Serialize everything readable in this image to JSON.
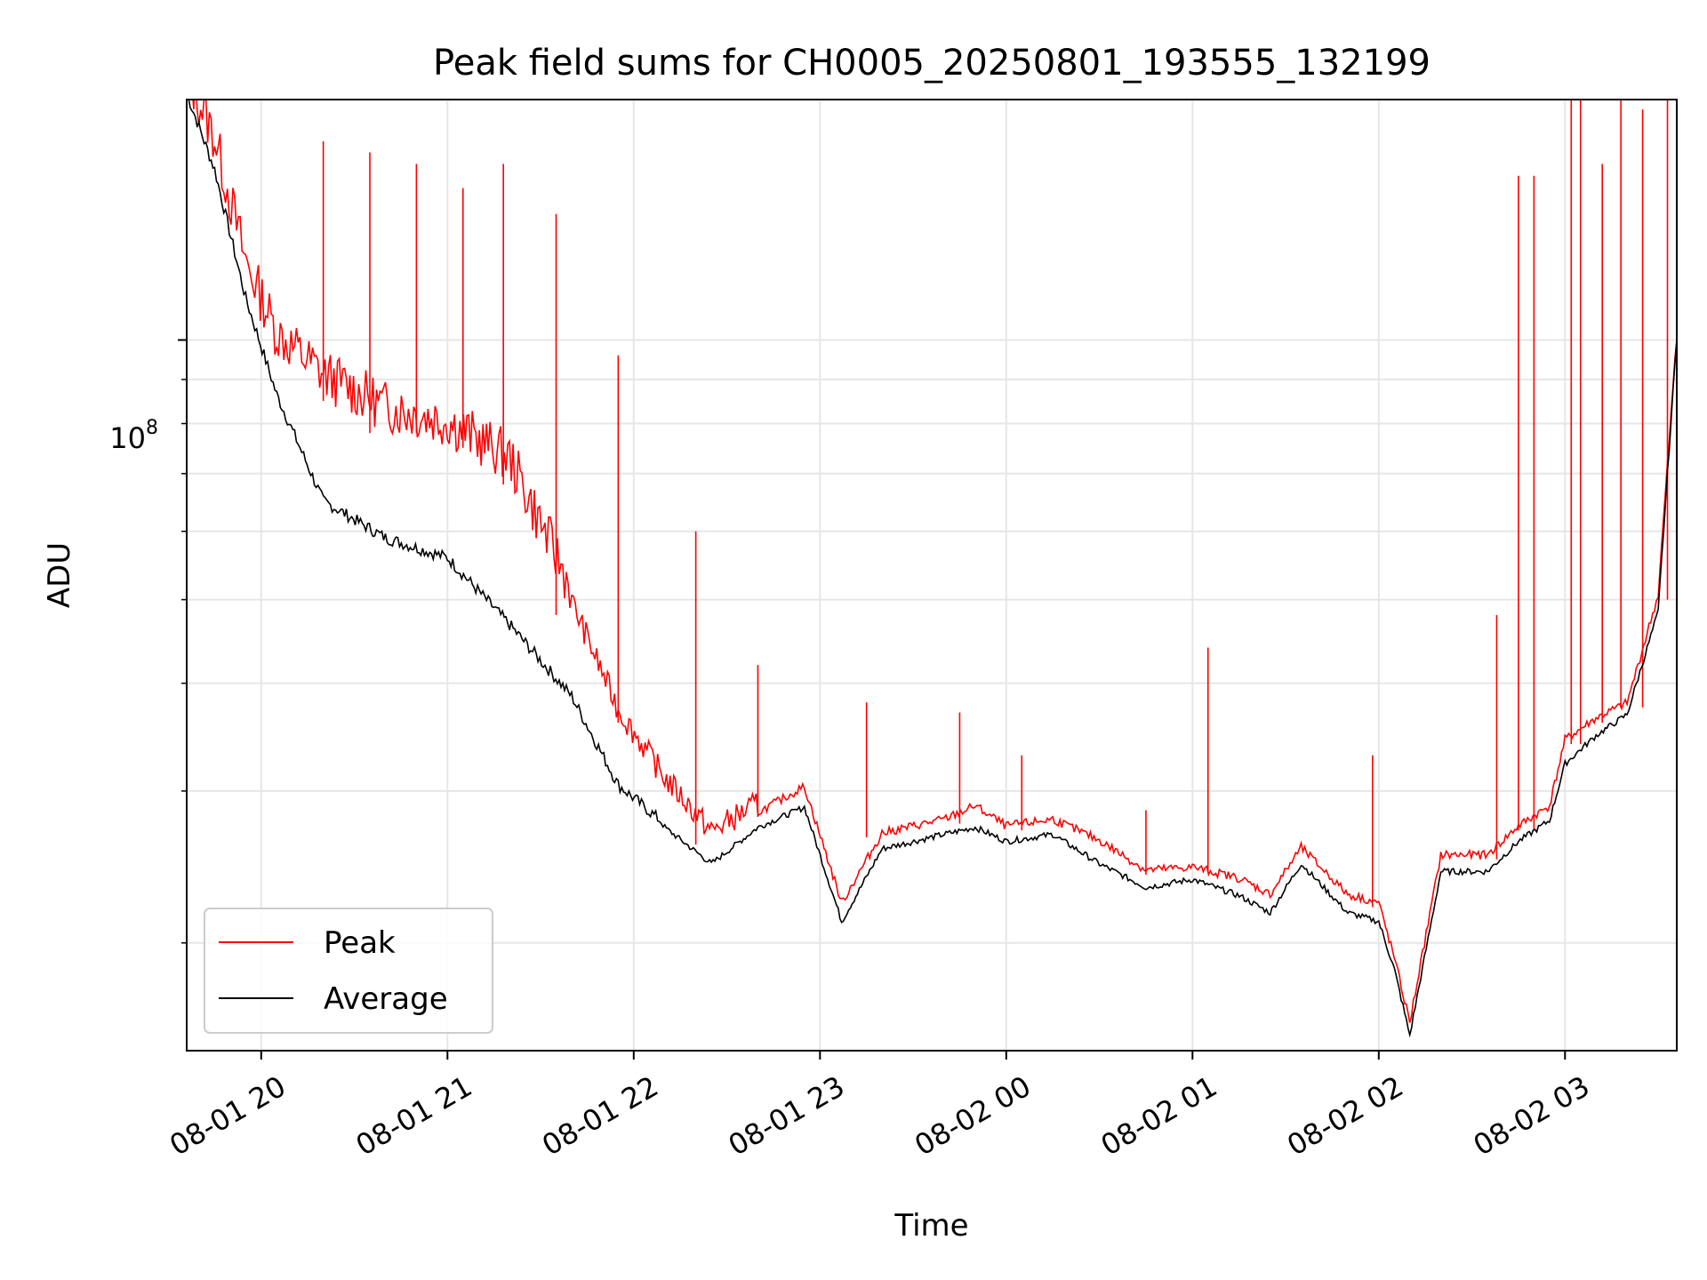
{
  "chart_data": {
    "type": "line",
    "title": "Peak field sums for CH0005_20250801_193555_132199",
    "xlabel": "Time",
    "ylabel": "ADU",
    "y_scale": "log",
    "ylim": [
      15000000,
      190000000
    ],
    "y_tick_base": "10",
    "y_tick_exponent": "8",
    "y_tick_value": 100000000,
    "y_minor_ticks": [
      20000000,
      30000000,
      40000000,
      50000000,
      60000000,
      70000000,
      80000000,
      90000000
    ],
    "xlim": [
      "2025-08-01 19:36",
      "2025-08-02 03:36"
    ],
    "x_ticks": [
      {
        "time": "2025-08-01 20:00",
        "label": "08-01 20"
      },
      {
        "time": "2025-08-01 21:00",
        "label": "08-01 21"
      },
      {
        "time": "2025-08-01 22:00",
        "label": "08-01 22"
      },
      {
        "time": "2025-08-01 23:00",
        "label": "08-01 23"
      },
      {
        "time": "2025-08-02 00:00",
        "label": "08-02 00"
      },
      {
        "time": "2025-08-02 01:00",
        "label": "08-02 01"
      },
      {
        "time": "2025-08-02 02:00",
        "label": "08-02 02"
      },
      {
        "time": "2025-08-02 03:00",
        "label": "08-02 03"
      }
    ],
    "grid": true,
    "legend_position": "bottom-left",
    "series": [
      {
        "name": "Peak",
        "color": "#ff0000",
        "points": [
          [
            "2025-08-01 19:36",
            190000000
          ],
          [
            "2025-08-01 19:45",
            160000000
          ],
          [
            "2025-08-01 19:55",
            115000000
          ],
          [
            "2025-08-01 20:05",
            95000000
          ],
          [
            "2025-08-01 20:20",
            85000000
          ],
          [
            "2025-08-01 20:40",
            78000000
          ],
          [
            "2025-08-01 21:00",
            75000000
          ],
          [
            "2025-08-01 21:20",
            68000000
          ],
          [
            "2025-08-01 21:40",
            48000000
          ],
          [
            "2025-08-01 21:55",
            36000000
          ],
          [
            "2025-08-01 22:10",
            30000000
          ],
          [
            "2025-08-01 22:25",
            26000000
          ],
          [
            "2025-08-01 22:40",
            28000000
          ],
          [
            "2025-08-01 22:55",
            30000000
          ],
          [
            "2025-08-01 23:07",
            22000000
          ],
          [
            "2025-08-01 23:20",
            26500000
          ],
          [
            "2025-08-01 23:40",
            27500000
          ],
          [
            "2025-08-01 23:50",
            28500000
          ],
          [
            "2025-08-02 00:00",
            27000000
          ],
          [
            "2025-08-02 00:15",
            27500000
          ],
          [
            "2025-08-02 00:30",
            26000000
          ],
          [
            "2025-08-02 00:45",
            24000000
          ],
          [
            "2025-08-02 01:00",
            24200000
          ],
          [
            "2025-08-02 01:15",
            23500000
          ],
          [
            "2025-08-02 01:25",
            22500000
          ],
          [
            "2025-08-02 01:35",
            25500000
          ],
          [
            "2025-08-02 01:50",
            22500000
          ],
          [
            "2025-08-02 02:00",
            22000000
          ],
          [
            "2025-08-02 02:05",
            19000000
          ],
          [
            "2025-08-02 02:10",
            16000000
          ],
          [
            "2025-08-02 02:20",
            25000000
          ],
          [
            "2025-08-02 02:35",
            25000000
          ],
          [
            "2025-08-02 02:45",
            27000000
          ],
          [
            "2025-08-02 02:55",
            28500000
          ],
          [
            "2025-08-02 03:00",
            34000000
          ],
          [
            "2025-08-02 03:10",
            36000000
          ],
          [
            "2025-08-02 03:20",
            37500000
          ],
          [
            "2025-08-02 03:30",
            50000000
          ],
          [
            "2025-08-02 03:36",
            100000000
          ]
        ],
        "spikes": [
          [
            "2025-08-01 20:20",
            170000000
          ],
          [
            "2025-08-01 20:35",
            165000000
          ],
          [
            "2025-08-01 20:50",
            160000000
          ],
          [
            "2025-08-01 21:05",
            150000000
          ],
          [
            "2025-08-01 21:18",
            160000000
          ],
          [
            "2025-08-01 21:35",
            140000000
          ],
          [
            "2025-08-01 21:55",
            96000000
          ],
          [
            "2025-08-01 22:20",
            60000000
          ],
          [
            "2025-08-01 22:40",
            42000000
          ],
          [
            "2025-08-01 23:15",
            38000000
          ],
          [
            "2025-08-01 23:45",
            37000000
          ],
          [
            "2025-08-02 00:05",
            33000000
          ],
          [
            "2025-08-02 00:45",
            28500000
          ],
          [
            "2025-08-02 01:05",
            44000000
          ],
          [
            "2025-08-02 01:58",
            33000000
          ],
          [
            "2025-08-02 02:38",
            48000000
          ],
          [
            "2025-08-02 02:45",
            155000000
          ],
          [
            "2025-08-02 02:50",
            155000000
          ],
          [
            "2025-08-02 03:02",
            190000000
          ],
          [
            "2025-08-02 03:05",
            190000000
          ],
          [
            "2025-08-02 03:12",
            160000000
          ],
          [
            "2025-08-02 03:18",
            190000000
          ],
          [
            "2025-08-02 03:25",
            185000000
          ],
          [
            "2025-08-02 03:33",
            190000000
          ]
        ]
      },
      {
        "name": "Average",
        "color": "#000000",
        "points": [
          [
            "2025-08-01 19:36",
            190000000
          ],
          [
            "2025-08-01 19:45",
            155000000
          ],
          [
            "2025-08-01 19:55",
            110000000
          ],
          [
            "2025-08-01 20:05",
            85000000
          ],
          [
            "2025-08-01 20:20",
            64000000
          ],
          [
            "2025-08-01 20:40",
            58000000
          ],
          [
            "2025-08-01 21:00",
            55000000
          ],
          [
            "2025-08-01 21:20",
            46000000
          ],
          [
            "2025-08-01 21:40",
            38000000
          ],
          [
            "2025-08-01 21:55",
            30000000
          ],
          [
            "2025-08-01 22:10",
            27000000
          ],
          [
            "2025-08-01 22:25",
            24500000
          ],
          [
            "2025-08-01 22:40",
            27000000
          ],
          [
            "2025-08-01 22:55",
            28500000
          ],
          [
            "2025-08-01 23:07",
            21000000
          ],
          [
            "2025-08-01 23:20",
            25500000
          ],
          [
            "2025-08-01 23:40",
            26500000
          ],
          [
            "2025-08-01 23:50",
            27000000
          ],
          [
            "2025-08-02 00:00",
            26000000
          ],
          [
            "2025-08-02 00:15",
            26500000
          ],
          [
            "2025-08-02 00:30",
            24500000
          ],
          [
            "2025-08-02 00:45",
            23000000
          ],
          [
            "2025-08-02 01:00",
            23500000
          ],
          [
            "2025-08-02 01:15",
            22500000
          ],
          [
            "2025-08-02 01:25",
            21500000
          ],
          [
            "2025-08-02 01:35",
            24500000
          ],
          [
            "2025-08-02 01:50",
            21500000
          ],
          [
            "2025-08-02 02:00",
            21000000
          ],
          [
            "2025-08-02 02:05",
            18500000
          ],
          [
            "2025-08-02 02:10",
            15500000
          ],
          [
            "2025-08-02 02:20",
            24000000
          ],
          [
            "2025-08-02 02:35",
            24000000
          ],
          [
            "2025-08-02 02:45",
            26000000
          ],
          [
            "2025-08-02 02:55",
            27500000
          ],
          [
            "2025-08-02 03:00",
            32000000
          ],
          [
            "2025-08-02 03:10",
            34500000
          ],
          [
            "2025-08-02 03:20",
            36500000
          ],
          [
            "2025-08-02 03:30",
            48000000
          ],
          [
            "2025-08-02 03:36",
            100000000
          ]
        ]
      }
    ]
  }
}
